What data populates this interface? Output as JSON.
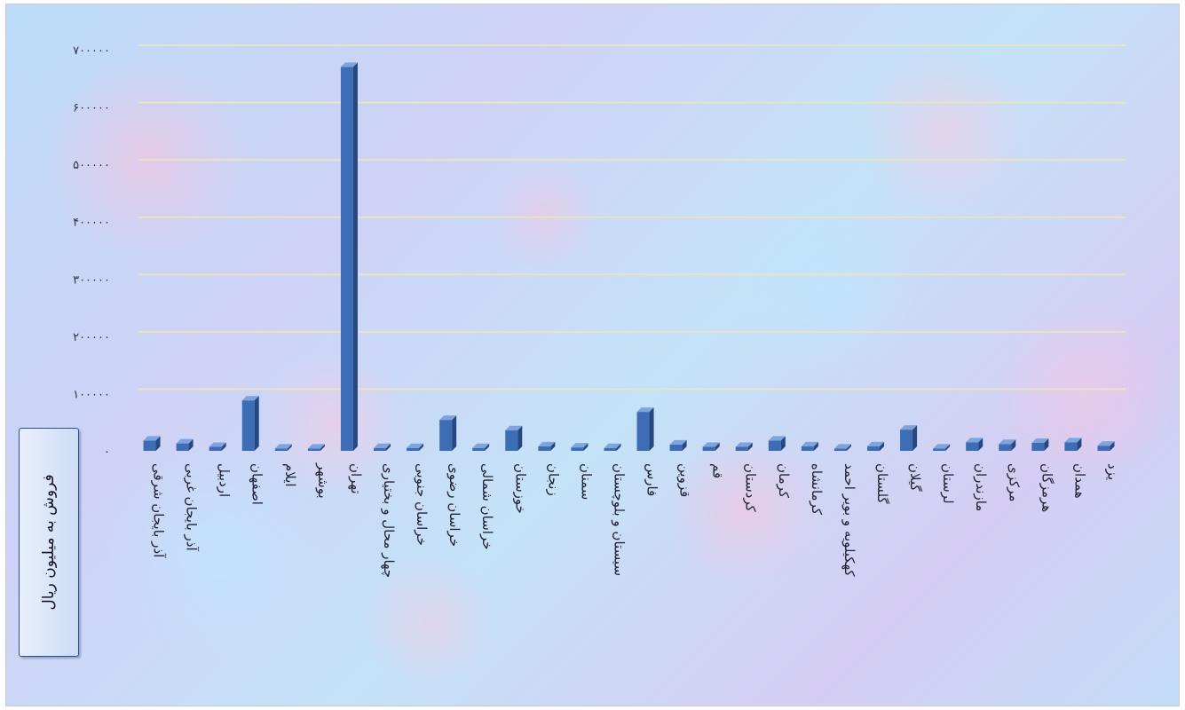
{
  "chart_data": {
    "type": "bar",
    "ylabel": "فروش به میلیون ریال",
    "ylim": [
      0,
      700000
    ],
    "yticks": [
      0,
      100000,
      200000,
      300000,
      400000,
      500000,
      600000,
      700000
    ],
    "ytick_labels": [
      "۰",
      "۱۰۰۰۰۰",
      "۲۰۰۰۰۰",
      "۳۰۰۰۰۰",
      "۴۰۰۰۰۰",
      "۵۰۰۰۰۰",
      "۶۰۰۰۰۰",
      "۷۰۰۰۰۰"
    ],
    "grid": true,
    "bar_color": "#3d6db5",
    "categories": [
      "آذر بایجان شرقی",
      "آذر بایجان غربی",
      "اردبیل",
      "اصفهان",
      "ایلام",
      "بوشهر",
      "تهران",
      "چهار محال و بختیاری",
      "خراسان جنوبی",
      "خراسان رضوی",
      "خراسان شمالی",
      "خوزستان",
      "زنجان",
      "سمنان",
      "سیستان و بلوچستان",
      "فارس",
      "قزوین",
      "قم",
      "کردستان",
      "کرمان",
      "کرمانشاه",
      "کهکیلویه و بویر احمد",
      "گلستان",
      "گیلان",
      "لرستان",
      "مازندران",
      "مرکزی",
      "هرمزگان",
      "همدان",
      "یزد"
    ],
    "values": [
      18000,
      13000,
      7000,
      88000,
      4000,
      4000,
      670000,
      5000,
      5000,
      54000,
      5000,
      36000,
      8000,
      6000,
      5000,
      68000,
      11000,
      7000,
      7000,
      18000,
      8000,
      4000,
      8000,
      37000,
      4000,
      15000,
      12000,
      14000,
      15000,
      9000
    ]
  }
}
